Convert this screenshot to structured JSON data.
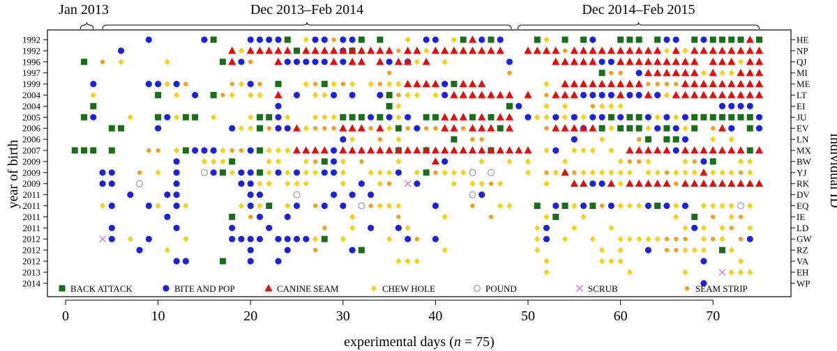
{
  "chart_data": {
    "type": "scatter",
    "xlabel": "experimental days (n = 75)",
    "xlabel_parts": [
      "experimental days (",
      "n",
      " = 75)"
    ],
    "ylabel_left": "year of birth",
    "ylabel_right": "individual ID",
    "xlim": [
      -0.5,
      75.5
    ],
    "xticks": [
      0,
      10,
      20,
      30,
      40,
      50,
      60,
      70
    ],
    "grid": false,
    "legend_position": "bottom inside plot",
    "periods": [
      {
        "label": "Jan 2013",
        "start": 1.6,
        "end": 3.0
      },
      {
        "label": "Dec 2013–Feb 2014",
        "start": 4.0,
        "end": 48.2
      },
      {
        "label": "Dec 2014–Feb 2015",
        "start": 48.9,
        "end": 75.0
      }
    ],
    "individuals": [
      {
        "id": "HE",
        "year": "1992"
      },
      {
        "id": "NP",
        "year": "1992"
      },
      {
        "id": "QJ",
        "year": "1996"
      },
      {
        "id": "MI",
        "year": "1997"
      },
      {
        "id": "ME",
        "year": "1999"
      },
      {
        "id": "LT",
        "year": "2004"
      },
      {
        "id": "EI",
        "year": "2004"
      },
      {
        "id": "JU",
        "year": "2005"
      },
      {
        "id": "EV",
        "year": "2006"
      },
      {
        "id": "LN",
        "year": "2006"
      },
      {
        "id": "MX",
        "year": "2007"
      },
      {
        "id": "BW",
        "year": "2009"
      },
      {
        "id": "YJ",
        "year": "2009"
      },
      {
        "id": "RK",
        "year": "2009"
      },
      {
        "id": "DV",
        "year": "2011"
      },
      {
        "id": "EQ",
        "year": "2011"
      },
      {
        "id": "IE",
        "year": "2011"
      },
      {
        "id": "LD",
        "year": "2011"
      },
      {
        "id": "GW",
        "year": "2012"
      },
      {
        "id": "RZ",
        "year": "2012"
      },
      {
        "id": "VA",
        "year": "2012"
      },
      {
        "id": "EH",
        "year": "2013"
      },
      {
        "id": "WP",
        "year": "2014"
      }
    ],
    "series": [
      {
        "name": "BACK ATTACK",
        "marker": "square",
        "color": "#1a6e1a"
      },
      {
        "name": "BITE AND POP",
        "marker": "circle",
        "color": "#1c22d8"
      },
      {
        "name": "CANINE SEAM",
        "marker": "triangle",
        "color": "#e01010"
      },
      {
        "name": "CHEW HOLE",
        "marker": "diamond",
        "color": "#f2d21a"
      },
      {
        "name": "POUND",
        "marker": "open-circle",
        "color": "#9a9a9a"
      },
      {
        "name": "SCRUB",
        "marker": "cross",
        "color": "#d070d0"
      },
      {
        "name": "SEAM STRIP",
        "marker": "small-circle",
        "color": "#f0a020"
      }
    ],
    "points": [
      {
        "id": "HE",
        "BACK ATTACK": [
          16,
          24,
          32,
          34,
          43,
          46,
          51,
          54,
          56,
          60,
          61,
          62,
          64,
          68,
          70,
          71,
          72,
          73,
          75
        ],
        "BITE AND POP": [
          9,
          15,
          20,
          21,
          22,
          23,
          27,
          28,
          30,
          31,
          39,
          40,
          45,
          47,
          57,
          60,
          65,
          66,
          69
        ],
        "CANINE SEAM": [
          44,
          74
        ],
        "CHEW HOLE": [
          26,
          37,
          42,
          52,
          66
        ],
        "SEAM STRIP": [
          29
        ]
      },
      {
        "id": "NP",
        "BACK ATTACK": [
          25,
          31
        ],
        "BITE AND POP": [
          6,
          30
        ],
        "CANINE SEAM": [
          18,
          20,
          21,
          22,
          23,
          24,
          26,
          27,
          28,
          29,
          30,
          31,
          32,
          33,
          34,
          35,
          37,
          38,
          40,
          41,
          42,
          43,
          44,
          45,
          46,
          47,
          50,
          51,
          52,
          53,
          55,
          56,
          57,
          58,
          59,
          60,
          61,
          62,
          63,
          64,
          66,
          68,
          69,
          70,
          71,
          72,
          73,
          74,
          75
        ],
        "CHEW HOLE": [
          19,
          39,
          65,
          67
        ],
        "SEAM STRIP": [
          36,
          54
        ]
      },
      {
        "id": "QJ",
        "BACK ATTACK": [
          2,
          17
        ],
        "BITE AND POP": [
          19,
          24,
          25,
          26,
          27,
          28,
          30,
          35,
          37,
          48,
          58,
          59
        ],
        "CANINE SEAM": [
          18,
          23,
          29,
          31,
          32,
          34,
          36,
          37,
          39,
          53,
          54,
          55,
          56,
          57,
          60,
          61,
          62,
          63,
          64,
          65,
          66,
          67,
          68,
          70,
          71,
          72,
          74,
          75
        ],
        "CHEW HOLE": [
          6,
          11,
          38,
          41,
          53,
          73
        ],
        "SEAM STRIP": [
          4,
          20
        ]
      },
      {
        "id": "MI",
        "BACK ATTACK": [
          58
        ],
        "BITE AND POP": [
          62
        ],
        "CANINE SEAM": [
          63,
          64,
          65,
          66,
          67,
          68,
          70,
          73,
          74,
          75
        ],
        "CHEW HOLE": [
          69,
          71,
          72
        ],
        "SEAM STRIP": [
          35,
          48,
          59,
          60
        ]
      },
      {
        "id": "ME",
        "BACK ATTACK": [
          23,
          28,
          42
        ],
        "BITE AND POP": [
          3,
          9,
          10,
          12,
          20,
          41
        ],
        "CANINE SEAM": [
          37,
          38,
          39,
          40,
          43,
          44,
          45,
          54,
          55,
          56,
          57,
          58,
          59,
          60,
          61,
          62,
          67,
          68,
          69,
          70,
          71,
          72,
          73,
          74,
          75
        ],
        "CHEW HOLE": [
          11,
          19,
          26,
          28,
          29,
          31,
          33,
          35,
          36,
          41,
          52,
          55,
          56,
          60
        ],
        "SEAM STRIP": [
          13,
          18,
          21,
          27,
          30,
          34,
          63,
          64,
          65,
          66
        ]
      },
      {
        "id": "LT",
        "BACK ATTACK": [
          10,
          16,
          35
        ],
        "BITE AND POP": [
          14,
          25,
          29,
          31,
          34,
          41,
          56,
          57,
          58,
          59,
          61,
          62,
          64
        ],
        "CANINE SEAM": [
          23,
          42,
          43,
          44,
          45,
          46,
          47,
          48,
          50,
          53,
          54,
          55,
          60,
          63,
          66,
          67,
          68,
          69,
          70,
          71,
          72,
          73,
          74,
          75
        ],
        "CHEW HOLE": [
          3,
          12,
          18,
          20,
          21,
          27,
          28,
          37,
          38,
          40,
          65
        ],
        "SEAM STRIP": [
          17,
          36,
          52
        ]
      },
      {
        "id": "EI",
        "BACK ATTACK": [
          3,
          35,
          48
        ],
        "BITE AND POP": [
          23,
          49,
          71,
          72,
          73,
          74
        ],
        "CANINE SEAM": [],
        "CHEW HOLE": [
          36,
          52,
          54,
          58,
          59,
          60
        ],
        "SEAM STRIP": [
          57
        ]
      },
      {
        "id": "JU",
        "BACK ATTACK": [
          2,
          10,
          13,
          14,
          21,
          22,
          30,
          31,
          32,
          34,
          39,
          40,
          44,
          46,
          59,
          61,
          62,
          68,
          69,
          70,
          71,
          72,
          73,
          74
        ],
        "BITE AND POP": [
          3,
          11,
          23,
          33,
          35,
          37,
          50,
          53,
          55,
          57,
          58,
          60,
          63,
          65,
          67,
          75
        ],
        "CANINE SEAM": [
          41,
          42,
          43,
          45,
          47,
          48
        ],
        "CHEW HOLE": [
          7,
          12,
          16,
          20,
          24,
          27,
          28,
          29,
          36,
          51,
          52,
          54,
          56,
          64,
          66
        ],
        "SEAM STRIP": []
      },
      {
        "id": "EV",
        "BACK ATTACK": [
          5,
          6,
          21,
          36,
          47,
          58,
          60,
          61,
          62,
          65,
          68,
          74
        ],
        "BITE AND POP": [
          10,
          18,
          23,
          24,
          38,
          56,
          64,
          66,
          72,
          75
        ],
        "CANINE SEAM": [
          25,
          30,
          31,
          32,
          34,
          41,
          42,
          44,
          45,
          46,
          48,
          53,
          54,
          55,
          56,
          57,
          71
        ],
        "CHEW HOLE": [
          19,
          20,
          26,
          35,
          59,
          63,
          67
        ],
        "SEAM STRIP": [
          22,
          27,
          28,
          29,
          33,
          37,
          39,
          40,
          43,
          52,
          70
        ]
      },
      {
        "id": "LN",
        "BACK ATTACK": [
          42,
          63,
          65,
          66
        ],
        "BITE AND POP": [
          30,
          55,
          67
        ],
        "CANINE SEAM": [],
        "CHEW HOLE": [
          31,
          36,
          58,
          70,
          72
        ],
        "SEAM STRIP": [
          34,
          44,
          45,
          62
        ]
      },
      {
        "id": "MX",
        "BACK ATTACK": [
          1,
          2,
          3,
          5,
          13,
          21,
          36,
          39,
          46,
          74
        ],
        "BITE AND POP": [
          14,
          15,
          16,
          20,
          29,
          53,
          66
        ],
        "CANINE SEAM": [
          25,
          26,
          27,
          28,
          30,
          31,
          32,
          33,
          34,
          35,
          36,
          37,
          38,
          39,
          40,
          41,
          42,
          43,
          44,
          45,
          46,
          47,
          48,
          49,
          50,
          61,
          62,
          63,
          64,
          65,
          67,
          68,
          69,
          70,
          71,
          72,
          73,
          75
        ],
        "CHEW HOLE": [
          12,
          17,
          22,
          23,
          24,
          29,
          52,
          55,
          56,
          57,
          59,
          66
        ],
        "SEAM STRIP": [
          9,
          10,
          18,
          19
        ]
      },
      {
        "id": "BW",
        "BACK ATTACK": [
          18,
          28,
          70
        ],
        "BITE AND POP": [
          12,
          29,
          41,
          69
        ],
        "CANINE SEAM": [
          40
        ],
        "CHEW HOLE": [
          15,
          16,
          17,
          22,
          23,
          26,
          30,
          36,
          45,
          48,
          50,
          54,
          60,
          63,
          67,
          73,
          74
        ],
        "SEAM STRIP": [
          27,
          32,
          61,
          62,
          68
        ]
      },
      {
        "id": "YJ",
        "BACK ATTACK": [
          17,
          21,
          39
        ],
        "BITE AND POP": [
          4,
          5,
          12,
          16,
          19,
          20,
          21,
          23,
          25,
          28,
          29,
          36
        ],
        "CANINE SEAM": [
          54,
          69
        ],
        "CHEW HOLE": [
          10,
          18,
          22,
          24,
          26,
          27,
          30,
          33,
          34,
          35,
          38,
          41,
          42,
          43,
          50,
          53,
          54,
          56,
          57,
          58,
          59,
          60,
          61,
          63,
          64,
          66,
          67,
          68,
          70,
          71,
          72,
          74
        ],
        "POUND": [
          15,
          44,
          46
        ],
        "SEAM STRIP": [
          8,
          40,
          52,
          55,
          65,
          73
        ]
      },
      {
        "id": "RK",
        "BACK ATTACK": [],
        "BITE AND POP": [
          4,
          5,
          12,
          19,
          20,
          32,
          38,
          57,
          58
        ],
        "CANINE SEAM": [
          55,
          56,
          59,
          61,
          62,
          63,
          64,
          65,
          67,
          68,
          69,
          70,
          71,
          72,
          73,
          74,
          75
        ],
        "CHEW HOLE": [
          21,
          22,
          24,
          25,
          26,
          30,
          34,
          42,
          44,
          45,
          47,
          52,
          60
        ],
        "POUND": [
          8
        ],
        "SCRUB": [
          37
        ],
        "SEAM STRIP": [
          35,
          46,
          66
        ]
      },
      {
        "id": "DV",
        "BACK ATTACK": [],
        "BITE AND POP": [
          7,
          11,
          12,
          20,
          21,
          29,
          31,
          33,
          45
        ],
        "CANINE SEAM": [],
        "CHEW HOLE": [],
        "POUND": [
          25,
          44
        ],
        "SEAM STRIP": []
      },
      {
        "id": "EQ",
        "BACK ATTACK": [
          22,
          51,
          54,
          57,
          64
        ],
        "BITE AND POP": [
          5,
          9,
          12,
          20,
          25,
          28,
          30,
          40,
          53,
          56,
          59,
          63,
          65,
          67
        ],
        "CANINE SEAM": [],
        "CHEW HOLE": [
          4,
          10,
          13,
          19,
          21,
          24,
          34,
          35,
          36,
          47,
          48,
          55,
          60,
          61,
          62,
          64,
          66,
          69,
          70,
          71,
          72,
          74
        ],
        "POUND": [
          32,
          73
        ],
        "SEAM STRIP": [
          27,
          33,
          44,
          58
        ]
      },
      {
        "id": "IE",
        "BACK ATTACK": [
          18,
          53,
          68
        ],
        "BITE AND POP": [
          11,
          21,
          24
        ],
        "CANINE SEAM": [],
        "CHEW HOLE": [
          31,
          41,
          52,
          56,
          66,
          72
        ],
        "SEAM STRIP": [
          20,
          36,
          46,
          70,
          73
        ]
      },
      {
        "id": "LD",
        "BACK ATTACK": [],
        "BITE AND POP": [
          5,
          12,
          18,
          22,
          33,
          36,
          52,
          68
        ],
        "CANINE SEAM": [],
        "CHEW HOLE": [
          31,
          37,
          51,
          55,
          59,
          67,
          69,
          71,
          74
        ],
        "SEAM STRIP": [
          28,
          72
        ]
      },
      {
        "id": "GW",
        "BACK ATTACK": [
          28
        ],
        "BITE AND POP": [
          5,
          9,
          18,
          19,
          20,
          21,
          23,
          24,
          25,
          26,
          37,
          40,
          52,
          74
        ],
        "CANINE SEAM": [],
        "CHEW HOLE": [
          7,
          13,
          27,
          30,
          35,
          51,
          54,
          57,
          60,
          61,
          62,
          63,
          64,
          69,
          71
        ],
        "SCRUB": [
          4
        ],
        "SEAM STRIP": [
          38,
          65,
          66,
          67,
          70,
          73
        ]
      },
      {
        "id": "RZ",
        "BACK ATTACK": [
          32,
          71
        ],
        "BITE AND POP": [
          8,
          20,
          24,
          31,
          63
        ],
        "CANINE SEAM": [],
        "CHEW HOLE": [
          11,
          41,
          51,
          58,
          60,
          67,
          68,
          69,
          72
        ],
        "SEAM STRIP": [
          27,
          65,
          66
        ]
      },
      {
        "id": "VA",
        "BACK ATTACK": [
          17
        ],
        "BITE AND POP": [
          12,
          13,
          20,
          23,
          69
        ],
        "CANINE SEAM": [],
        "CHEW HOLE": [
          36,
          37,
          38,
          52,
          58,
          59,
          60,
          73
        ],
        "SEAM STRIP": [
          52
        ]
      },
      {
        "id": "EH",
        "BACK ATTACK": [],
        "BITE AND POP": [],
        "CANINE SEAM": [],
        "CHEW HOLE": [
          52,
          61,
          67,
          72,
          73,
          74
        ],
        "SCRUB": [
          71
        ],
        "SEAM STRIP": []
      },
      {
        "id": "WP",
        "BACK ATTACK": [],
        "BITE AND POP": [
          69
        ],
        "CANINE SEAM": [],
        "CHEW HOLE": [],
        "SEAM STRIP": []
      }
    ]
  }
}
